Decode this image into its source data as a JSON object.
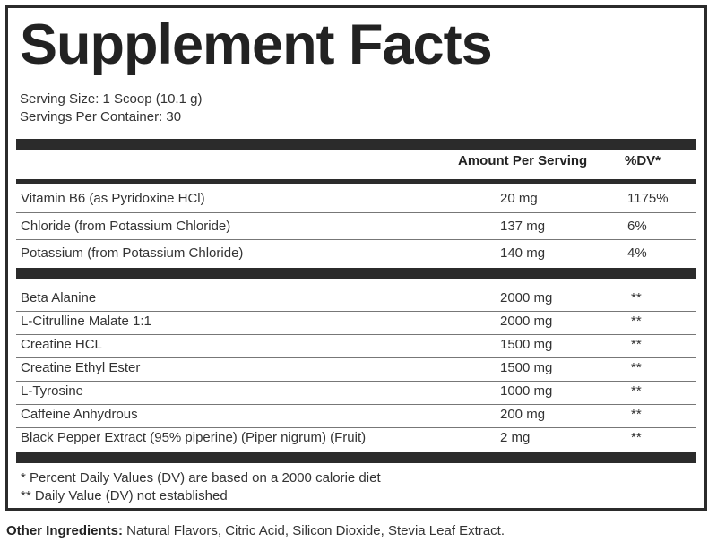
{
  "title": "Supplement Facts",
  "serving_size": "Serving Size: 1 Scoop (10.1 g)",
  "servings_per_container": "Servings Per Container: 30",
  "header": {
    "amount": "Amount Per Serving",
    "dv": "%DV*"
  },
  "vitamins": [
    {
      "name": "Vitamin B6 (as Pyridoxine HCl)",
      "amount": "20 mg",
      "dv": "1175%"
    },
    {
      "name": "Chloride (from Potassium Chloride)",
      "amount": "137 mg",
      "dv": "6%"
    },
    {
      "name": "Potassium (from Potassium Chloride)",
      "amount": "140 mg",
      "dv": "4%"
    }
  ],
  "blend": [
    {
      "name": "Beta Alanine",
      "amount": "2000 mg",
      "dv": "**"
    },
    {
      "name": "L-Citrulline Malate 1:1",
      "amount": "2000 mg",
      "dv": "**"
    },
    {
      "name": "Creatine HCL",
      "amount": "1500 mg",
      "dv": "**"
    },
    {
      "name": "Creatine Ethyl Ester",
      "amount": "1500 mg",
      "dv": "**"
    },
    {
      "name": "L-Tyrosine",
      "amount": "1000 mg",
      "dv": "**"
    },
    {
      "name": "Caffeine Anhydrous",
      "amount": "200 mg",
      "dv": "**"
    },
    {
      "name": "Black Pepper Extract (95% piperine) (Piper nigrum) (Fruit)",
      "amount": "2 mg",
      "dv": "**"
    }
  ],
  "footnotes": {
    "dv_basis": "* Percent Daily Values (DV) are based on a 2000 calorie diet",
    "not_established": "** Daily Value (DV) not established"
  },
  "other_ingredients": {
    "label": "Other Ingredients:",
    "text": " Natural Flavors, Citric Acid, Silicon Dioxide, Stevia Leaf Extract."
  }
}
